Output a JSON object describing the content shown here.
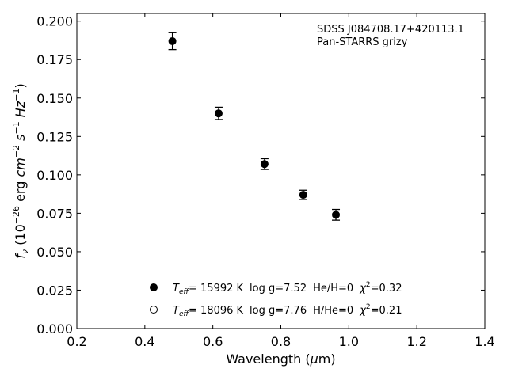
{
  "chart_data": {
    "type": "scatter",
    "annotations": [
      "SDSS J084708.17+420113.1",
      "Pan-STARRS grizy"
    ],
    "xlabel": {
      "main": "Wavelength (",
      "greek": "μ",
      "rest": "m)"
    },
    "ylabel": {
      "f": "f",
      "nu": "ν",
      "open": " (10",
      "exp1": "−26",
      "erg": " erg ",
      "cm": "cm",
      "exp2": "−2",
      "s": " s",
      "exp3": "−1",
      "hz": " Hz",
      "exp4": "−1",
      "close": ")"
    },
    "xlim": [
      0.2,
      1.4
    ],
    "ylim": [
      0.0,
      0.205
    ],
    "xticks": [
      0.2,
      0.4,
      0.6,
      0.8,
      1.0,
      1.2,
      1.4
    ],
    "xtick_labels": [
      "0.2",
      "0.4",
      "0.6",
      "0.8",
      "1.0",
      "1.2",
      "1.4"
    ],
    "yticks": [
      0.0,
      0.025,
      0.05,
      0.075,
      0.1,
      0.125,
      0.15,
      0.175,
      0.2
    ],
    "ytick_labels": [
      "0.000",
      "0.025",
      "0.050",
      "0.075",
      "0.100",
      "0.125",
      "0.150",
      "0.175",
      "0.200"
    ],
    "grid": false,
    "legend_position": "bottom-center",
    "series": [
      {
        "marker": "filled-circle",
        "color": "#000000",
        "x": [
          0.481,
          0.617,
          0.752,
          0.866,
          0.962
        ],
        "y": [
          0.187,
          0.14,
          0.107,
          0.087,
          0.074
        ],
        "yerr": [
          0.0055,
          0.004,
          0.0035,
          0.003,
          0.0035
        ],
        "legend": {
          "T": "T",
          "sub": "eff",
          "teff": "= 15992 K",
          "logg": "log g=7.52",
          "comp": "He/H=0",
          "chi": "χ",
          "chisup": "2",
          "chival": "=0.32"
        }
      },
      {
        "marker": "open-circle",
        "color": "#000000",
        "x": [],
        "y": [],
        "legend": {
          "T": "T",
          "sub": "eff",
          "teff": "= 18096 K",
          "logg": "log g=7.76",
          "comp": "H/He=0",
          "chi": "χ",
          "chisup": "2",
          "chival": "=0.21"
        }
      }
    ]
  }
}
